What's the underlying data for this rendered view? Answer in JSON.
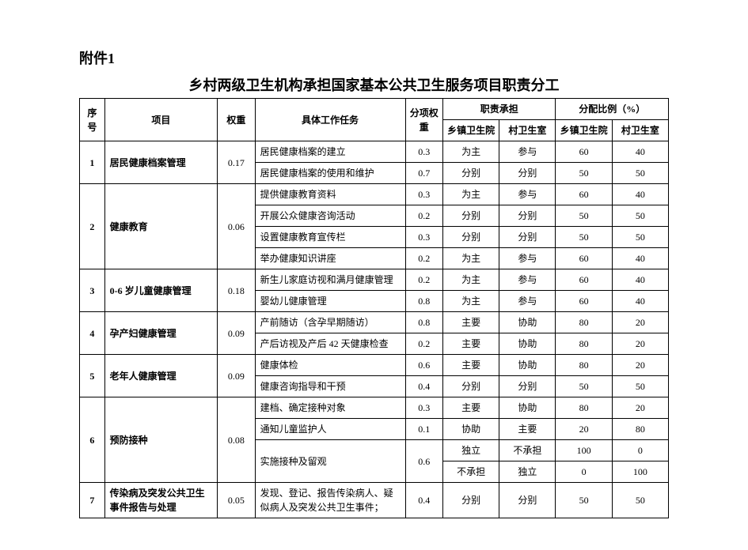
{
  "attachment_label": "附件1",
  "title": "乡村两级卫生机构承担国家基本公共卫生服务项目职责分工",
  "headers": {
    "seq": "序号",
    "project": "项目",
    "weight": "权重",
    "task": "具体工作任务",
    "sub_weight": "分项权重",
    "responsibility": "职责承担",
    "allocation": "分配比例（%）",
    "township": "乡镇卫生院",
    "village": "村卫生室"
  },
  "rows": {
    "r1": {
      "seq": "1",
      "project": "居民健康档案管理",
      "weight": "0.17",
      "tasks": [
        {
          "t": "居民健康档案的建立",
          "sw": "0.3",
          "r1": "为主",
          "r2": "参与",
          "p1": "60",
          "p2": "40"
        },
        {
          "t": "居民健康档案的使用和维护",
          "sw": "0.7",
          "r1": "分别",
          "r2": "分别",
          "p1": "50",
          "p2": "50"
        }
      ]
    },
    "r2": {
      "seq": "2",
      "project": "健康教育",
      "weight": "0.06",
      "tasks": [
        {
          "t": "提供健康教育资料",
          "sw": "0.3",
          "r1": "为主",
          "r2": "参与",
          "p1": "60",
          "p2": "40"
        },
        {
          "t": "开展公众健康咨询活动",
          "sw": "0.2",
          "r1": "分别",
          "r2": "分别",
          "p1": "50",
          "p2": "50"
        },
        {
          "t": "设置健康教育宣传栏",
          "sw": "0.3",
          "r1": "分别",
          "r2": "分别",
          "p1": "50",
          "p2": "50"
        },
        {
          "t": "举办健康知识讲座",
          "sw": "0.2",
          "r1": "为主",
          "r2": "参与",
          "p1": "60",
          "p2": "40"
        }
      ]
    },
    "r3": {
      "seq": "3",
      "project": "0-6 岁儿童健康管理",
      "weight": "0.18",
      "tasks": [
        {
          "t": "新生儿家庭访视和满月健康管理",
          "sw": "0.2",
          "r1": "为主",
          "r2": "参与",
          "p1": "60",
          "p2": "40"
        },
        {
          "t": "婴幼儿健康管理",
          "sw": "0.8",
          "r1": "为主",
          "r2": "参与",
          "p1": "60",
          "p2": "40"
        }
      ]
    },
    "r4": {
      "seq": "4",
      "project": "孕产妇健康管理",
      "weight": "0.09",
      "tasks": [
        {
          "t": "产前随访（含孕早期随访）",
          "sw": "0.8",
          "r1": "主要",
          "r2": "协助",
          "p1": "80",
          "p2": "20"
        },
        {
          "t": "产后访视及产后   42 天健康检查",
          "sw": "0.2",
          "r1": "主要",
          "r2": "协助",
          "p1": "80",
          "p2": "20"
        }
      ]
    },
    "r5": {
      "seq": "5",
      "project": "老年人健康管理",
      "weight": "0.09",
      "tasks": [
        {
          "t": "健康体检",
          "sw": "0.6",
          "r1": "主要",
          "r2": "协助",
          "p1": "80",
          "p2": "20"
        },
        {
          "t": "健康咨询指导和干预",
          "sw": "0.4",
          "r1": "分别",
          "r2": "分别",
          "p1": "50",
          "p2": "50"
        }
      ]
    },
    "r6": {
      "seq": "6",
      "project": "预防接种",
      "weight": "0.08",
      "t1": {
        "t": "建档、确定接种对象",
        "sw": "0.3",
        "r1": "主要",
        "r2": "协助",
        "p1": "80",
        "p2": "20"
      },
      "t2": {
        "t": "通知儿童监护人",
        "sw": "0.1",
        "r1": "协助",
        "r2": "主要",
        "p1": "20",
        "p2": "80"
      },
      "t3": {
        "t": "实施接种及留观",
        "sw": "0.6",
        "a": {
          "r1": "独立",
          "r2": "不承担",
          "p1": "100",
          "p2": "0"
        },
        "b": {
          "r1": "不承担",
          "r2": "独立",
          "p1": "0",
          "p2": "100"
        }
      }
    },
    "r7": {
      "seq": "7",
      "project": "传染病及突发公共卫生事件报告与处理",
      "weight": "0.05",
      "tasks": [
        {
          "t": "发现、登记、报告传染病人、疑似病人及突发公共卫生事件；",
          "sw": "0.4",
          "r1": "分别",
          "r2": "分别",
          "p1": "50",
          "p2": "50"
        }
      ]
    }
  },
  "style": {
    "background_color": "#ffffff",
    "border_color": "#000000",
    "font_family": "SimSun",
    "title_fontsize": 18,
    "cell_fontsize": 12,
    "header_bold": true
  }
}
